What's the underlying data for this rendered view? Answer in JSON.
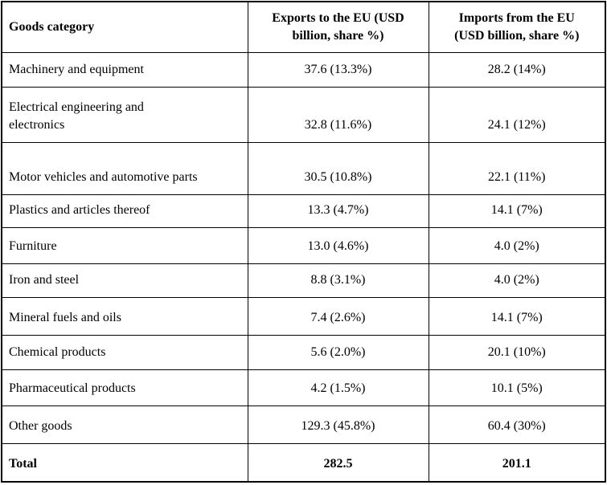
{
  "chart_data": {
    "type": "table",
    "title": "",
    "columns": [
      "Goods category",
      "Exports to the EU (USD billion, share %)",
      "Imports from the EU (USD billion, share %)"
    ],
    "rows": [
      [
        "Machinery and equipment",
        "37.6 (13.3%)",
        "28.2 (14%)"
      ],
      [
        "Electrical engineering and electronics",
        "32.8 (11.6%)",
        "24.1 (12%)"
      ],
      [
        "Motor vehicles and automotive parts",
        "30.5 (10.8%)",
        "22.1 (11%)"
      ],
      [
        "Plastics and articles thereof",
        "13.3 (4.7%)",
        "14.1 (7%)"
      ],
      [
        "Furniture",
        "13.0 (4.6%)",
        "4.0 (2%)"
      ],
      [
        "Iron and steel",
        "8.8 (3.1%)",
        "4.0 (2%)"
      ],
      [
        "Mineral fuels and oils",
        "7.4 (2.6%)",
        "14.1 (7%)"
      ],
      [
        "Chemical products",
        "5.6 (2.0%)",
        "20.1 (10%)"
      ],
      [
        "Pharmaceutical products",
        "4.2 (1.5%)",
        "10.1 (5%)"
      ],
      [
        "Other goods",
        "129.3 (45.8%)",
        "60.4 (30%)"
      ],
      [
        "Total",
        "282.5",
        "201.1"
      ]
    ],
    "totals": {
      "exports": "282.5",
      "imports": "201.1"
    },
    "colors": {
      "border": "#000000",
      "text": "#000000",
      "background": "#ffffff"
    }
  },
  "table": {
    "columns": [
      {
        "label": "Goods category"
      },
      {
        "line1": "Exports to the EU (USD",
        "line2": "billion, share %)"
      },
      {
        "line1": "Imports from the EU",
        "line2": "(USD billion, share %)"
      }
    ],
    "rows": [
      {
        "category": "Machinery and equipment",
        "exports": "37.6 (13.3%)",
        "imports": "28.2 (14%)"
      },
      {
        "category": "Electrical engineering and\nelectronics",
        "exports": "32.8 (11.6%)",
        "imports": "24.1 (12%)"
      },
      {
        "category": "Motor vehicles and automotive parts",
        "exports": "30.5 (10.8%)",
        "imports": "22.1 (11%)"
      },
      {
        "category": "Plastics and articles thereof",
        "exports": "13.3 (4.7%)",
        "imports": "14.1 (7%)"
      },
      {
        "category": "Furniture",
        "exports": "13.0 (4.6%)",
        "imports": "4.0 (2%)"
      },
      {
        "category": "Iron and steel",
        "exports": "8.8 (3.1%)",
        "imports": "4.0 (2%)"
      },
      {
        "category": "Mineral fuels and oils",
        "exports": "7.4 (2.6%)",
        "imports": "14.1 (7%)"
      },
      {
        "category": "Chemical products",
        "exports": "5.6 (2.0%)",
        "imports": "20.1 (10%)"
      },
      {
        "category": "Pharmaceutical products",
        "exports": "4.2 (1.5%)",
        "imports": "10.1 (5%)"
      },
      {
        "category": "Other goods",
        "exports": "129.3 (45.8%)",
        "imports": "60.4 (30%)"
      }
    ],
    "total": {
      "category": "Total",
      "exports": "282.5",
      "imports": "201.1"
    }
  }
}
